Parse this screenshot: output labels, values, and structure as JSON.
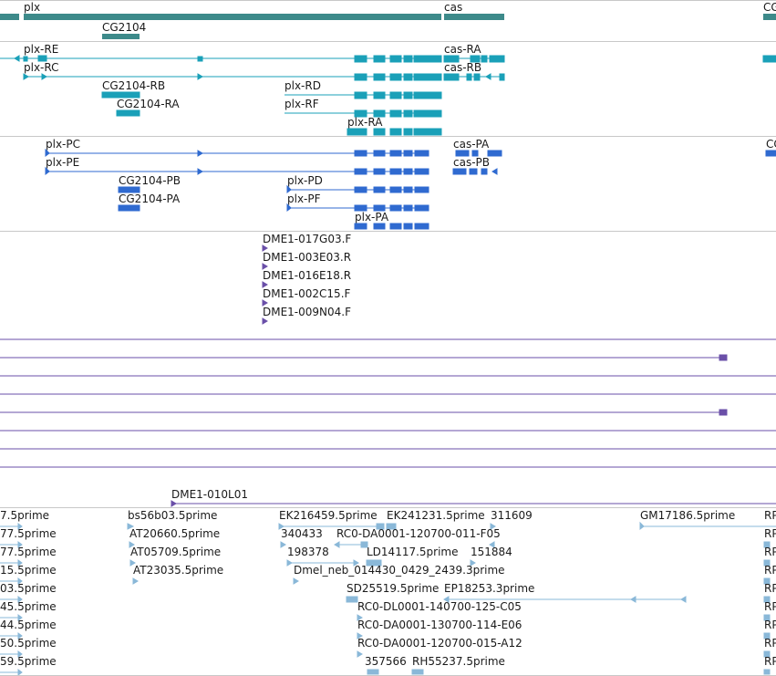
{
  "tracks": {
    "gene": {
      "labels": [
        "plx",
        "cas",
        "CG2104",
        "CG"
      ],
      "color": "#3d8a8a"
    },
    "transcripts_a": {
      "labels": [
        "plx-RE",
        "cas-RA",
        "plx-RC",
        "cas-RB",
        "CG2104-RB",
        "plx-RD",
        "CG2104-RA",
        "plx-RF",
        "plx-RA"
      ],
      "color": "#1aa0b8"
    },
    "transcripts_b": {
      "labels": [
        "plx-PC",
        "cas-PA",
        "plx-PE",
        "cas-PB",
        "CG2104-PB",
        "plx-PD",
        "CG2104-PA",
        "plx-PF",
        "plx-PA",
        "CC"
      ],
      "color": "#2f6ad0"
    },
    "clones": {
      "labels": [
        "DME1-017G03.F",
        "DME1-003E03.R",
        "DME1-016E18.R",
        "DME1-002C15.F",
        "DME1-009N04.F",
        "DME1-010L01"
      ],
      "color": "#6a4fa8"
    },
    "ests": {
      "labels": [
        "7.5prime",
        "bs56b03.5prime",
        "EK216459.5prime",
        "EK241231.5prime",
        "311609",
        "GM17186.5prime",
        "RP",
        "77.5prime",
        "AT20660.5prime",
        "340433",
        "RC0-DA0001-120700-011-F05",
        "RP",
        "77.5prime",
        "AT05709.5prime",
        "198378",
        "LD14117.5prime",
        "151884",
        "RP",
        "15.5prime",
        "AT23035.5prime",
        "Dmel_neb_014430_0429_2439.3prime",
        "RP",
        "03.5prime",
        "SD25519.5prime",
        "EP18253.3prime",
        "RP",
        "45.5prime",
        "RC0-DL0001-140700-125-C05",
        "RP",
        "44.5prime",
        "RC0-DA0001-130700-114-E06",
        "RP",
        "50.5prime",
        "RC0-DA0001-120700-015-A12",
        "RP",
        "59.5prime",
        "357566",
        "RH55237.5prime",
        "RP"
      ],
      "color": "#8ab8d8"
    }
  }
}
